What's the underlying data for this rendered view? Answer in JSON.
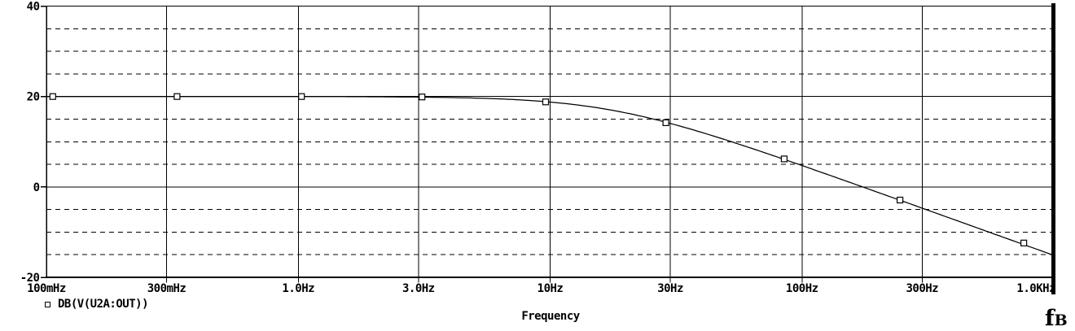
{
  "colors": {
    "background": "#ffffff",
    "foreground": "#000000"
  },
  "chart_data": {
    "type": "line",
    "title": "",
    "xlabel": "Frequency",
    "x_axis": {
      "scale": "log",
      "min_hz": 0.1,
      "max_hz": 1000,
      "tick_values": [
        0.1,
        0.3,
        1,
        3,
        10,
        30,
        100,
        300,
        1000
      ],
      "tick_labels": [
        "100mHz",
        "300mHz",
        "1.0Hz",
        "3.0Hz",
        "10Hz",
        "30Hz",
        "100Hz",
        "300Hz",
        "1.0KHz"
      ],
      "grid_major_style": "solid"
    },
    "y_axis": {
      "unit": "dB",
      "min": -20,
      "max": 40,
      "major_tick_values": [
        40,
        20,
        0,
        -20
      ],
      "major_tick_labels": [
        "40",
        "20",
        "0",
        "-20"
      ],
      "minor_step": 5,
      "grid_major_style": "solid",
      "grid_minor_style": "dashed"
    },
    "series": [
      {
        "name": "DB(V(U2A:OUT))",
        "marker": "open-square",
        "color": "#000000",
        "model": {
          "kind": "first-order-lowpass",
          "gain_db": 20,
          "corner_hz": 17.5
        },
        "points": [
          {
            "f_hz": 0.106,
            "db": 20.0
          },
          {
            "f_hz": 0.33,
            "db": 20.0
          },
          {
            "f_hz": 1.03,
            "db": 20.0
          },
          {
            "f_hz": 3.1,
            "db": 19.9
          },
          {
            "f_hz": 9.6,
            "db": 18.8
          },
          {
            "f_hz": 28.8,
            "db": 14.2
          },
          {
            "f_hz": 85,
            "db": 6.2
          },
          {
            "f_hz": 245,
            "db": -2.9
          },
          {
            "f_hz": 760,
            "db": -12.4
          }
        ]
      }
    ],
    "legend": {
      "position": "bottom-left",
      "entries": [
        "DB(V(U2A:OUT))"
      ]
    },
    "annotation": {
      "label": "fB",
      "main": "f",
      "sub": "B"
    }
  }
}
